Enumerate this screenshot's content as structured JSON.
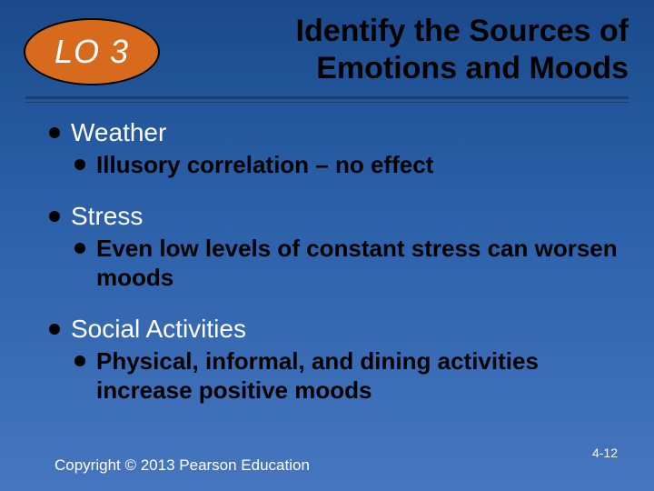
{
  "colors": {
    "background_top": "#1a4a8a",
    "background_mid": "#2a5fa8",
    "background_bottom": "#4676bf",
    "badge_fill": "#d86a1e",
    "badge_border": "#000000",
    "title_color": "#000000",
    "rule_color": "#1a3e72",
    "bullet_color": "#000000",
    "l1_text": "#ffffff",
    "l2_text": "#000000",
    "footer_text": "#ffffff"
  },
  "typography": {
    "title_fontsize": 34,
    "badge_fontsize": 36,
    "l1_fontsize": 28,
    "l2_fontsize": 26,
    "footer_fontsize": 17,
    "slide_number_fontsize": 14,
    "font_family": "Arial"
  },
  "badge": {
    "label": "LO 3"
  },
  "title": {
    "line1": "Identify the Sources of",
    "line2": "Emotions and Moods"
  },
  "groups": [
    {
      "l1": "Weather",
      "l2": "Illusory correlation – no effect"
    },
    {
      "l1": "Stress",
      "l2": "Even low levels of constant stress can worsen moods"
    },
    {
      "l1": "Social Activities",
      "l2": "Physical, informal, and dining activities increase positive moods"
    }
  ],
  "footer": {
    "copyright": "Copyright © 2013 Pearson Education",
    "slide_number": "4-12"
  }
}
